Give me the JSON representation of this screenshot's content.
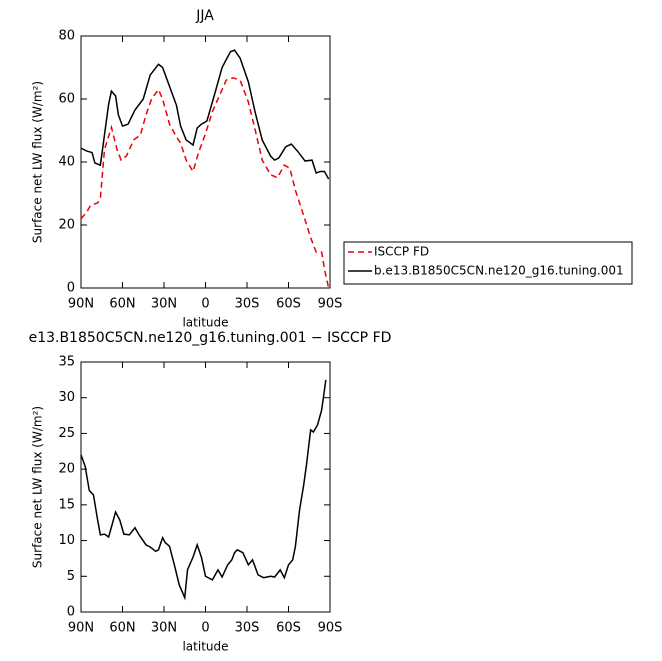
{
  "chart_data": [
    {
      "type": "line",
      "title": "JJA",
      "xlabel": "latitude",
      "ylabel": "Surface net LW flux (W/m²)",
      "xlim": [
        90,
        -90
      ],
      "xticks": [
        {
          "value": 90,
          "label": "90N"
        },
        {
          "value": 60,
          "label": "60N"
        },
        {
          "value": 30,
          "label": "30N"
        },
        0,
        {
          "value": -30,
          "label": "30S"
        },
        {
          "value": -60,
          "label": "60S"
        },
        {
          "value": -90,
          "label": "90S"
        }
      ],
      "ylim": [
        0,
        80
      ],
      "yticks": [
        0,
        20,
        40,
        60,
        80
      ],
      "legend": "right",
      "series": [
        {
          "name": "ISCCP FD",
          "color": "#e8000b",
          "dashed": true,
          "x": [
            90,
            86,
            83,
            78,
            76,
            73,
            68,
            64,
            61,
            57,
            52,
            47,
            43,
            39,
            34,
            31,
            26,
            21,
            18,
            14,
            9,
            5,
            0,
            -5,
            -10,
            -15,
            -20,
            -25,
            -31,
            -36,
            -41,
            -47,
            -52,
            -57,
            -61,
            -65,
            -71,
            -76,
            -80,
            -84,
            -86,
            -89
          ],
          "values": [
            22,
            24,
            26.3,
            27,
            28.5,
            44,
            51,
            44,
            40.6,
            42,
            47,
            48.6,
            55,
            60,
            63,
            60,
            52,
            48,
            46,
            40.6,
            37,
            43,
            49,
            56,
            61,
            66,
            66.7,
            66,
            59,
            50,
            40.6,
            36,
            35,
            39,
            38,
            31,
            23,
            16,
            11.4,
            11.4,
            6,
            0
          ]
        },
        {
          "name": "b.e13.B1850C5CN.ne120_g16.tuning.001",
          "color": "#000000",
          "dashed": false,
          "x": [
            90,
            86,
            82,
            80,
            76,
            70,
            68,
            65,
            63,
            60,
            56,
            51,
            45,
            40,
            34,
            31,
            26,
            21,
            18,
            14,
            9,
            6,
            3,
            -1,
            -6,
            -12,
            -18,
            -21,
            -25,
            -31,
            -36,
            -41,
            -47,
            -50,
            -53,
            -58,
            -62,
            -67,
            -72,
            -77,
            -80,
            -83,
            -86,
            -89
          ],
          "values": [
            44.4,
            43.5,
            43,
            39.7,
            39,
            58.4,
            62.5,
            61,
            55,
            51.4,
            52,
            56.5,
            60,
            67.6,
            71,
            70,
            64,
            58,
            51.4,
            47,
            45.4,
            50.8,
            52,
            53,
            60.6,
            70,
            75,
            75.5,
            73,
            65.4,
            55.6,
            47,
            41.9,
            40.6,
            41.3,
            44.8,
            45.7,
            43.2,
            40.3,
            40.6,
            36.5,
            37,
            37,
            34.6
          ]
        }
      ]
    },
    {
      "type": "line",
      "title": "e13.B1850C5CN.ne120_g16.tuning.001 − ISCCP FD",
      "xlabel": "latitude",
      "ylabel": "Surface net LW flux (W/m²)",
      "xlim": [
        90,
        -90
      ],
      "xticks": [
        {
          "value": 90,
          "label": "90N"
        },
        {
          "value": 60,
          "label": "60N"
        },
        {
          "value": 30,
          "label": "30N"
        },
        0,
        {
          "value": -30,
          "label": "30S"
        },
        {
          "value": -60,
          "label": "60S"
        },
        {
          "value": -90,
          "label": "90S"
        }
      ],
      "ylim": [
        0,
        35
      ],
      "yticks": [
        0,
        5,
        10,
        15,
        20,
        25,
        30,
        35
      ],
      "color": "#000000",
      "x": [
        90,
        87,
        84,
        81,
        78,
        76,
        73,
        70,
        65,
        62,
        59,
        55,
        51,
        48,
        43,
        40,
        36,
        34,
        31,
        29,
        26,
        22,
        19,
        15,
        13,
        9,
        6,
        3,
        0,
        -5,
        -9,
        -12,
        -16,
        -19,
        -21,
        -23,
        -27,
        -31,
        -34,
        -38,
        -42,
        -47,
        -50,
        -54,
        -57,
        -60,
        -63,
        -65,
        -68,
        -71,
        -73,
        -76,
        -78,
        -81,
        -84,
        -87
      ],
      "values": [
        22,
        20.4,
        17,
        16.4,
        12.9,
        10.8,
        10.9,
        10.5,
        14,
        12.9,
        10.9,
        10.8,
        11.8,
        10.8,
        9.4,
        9.1,
        8.5,
        8.7,
        10.4,
        9.7,
        9.2,
        6.2,
        3.8,
        2,
        5.9,
        7.7,
        9.4,
        7.7,
        5,
        4.5,
        5.9,
        4.9,
        6.6,
        7.3,
        8.3,
        8.7,
        8.3,
        6.6,
        7.3,
        5.2,
        4.8,
        5,
        4.9,
        5.9,
        4.8,
        6.6,
        7.3,
        9.2,
        14.3,
        17.8,
        20.6,
        25.5,
        25.2,
        26.2,
        28.3,
        32.5
      ]
    }
  ]
}
